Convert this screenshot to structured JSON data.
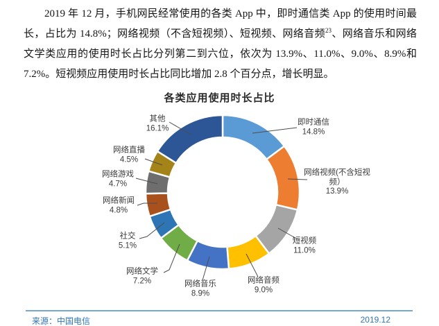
{
  "paragraph": {
    "part1": "2019 年 12 月，手机网民经常使用的各类 App 中，即时通信类 App 的使用时间最长，占比为 14.8%；网络视频（不含短视频）、短视频、网络音频",
    "footnote_ref": "23",
    "part2": "、网络音乐和网络文学类应用的使用时长占比分列第二到六位，依次为 13.9%、11.0%、9.0%、8.9%和 7.2%。短视频应用使用时长占比同比增加 2.8 个百分点，增长明显。"
  },
  "chart_data": {
    "type": "pie",
    "subtype": "donut",
    "title": "各类应用使用时长占比",
    "unit": "%",
    "start_angle_deg": 0,
    "direction": "clockwise",
    "legend": "none",
    "labels_style": "category-and-percent-with-leader-lines",
    "categories": [
      "即时通信",
      "网络视频(不含短视频）",
      "短视频",
      "网络音频",
      "网络音乐",
      "网络文学",
      "社交",
      "网络新闻",
      "网络游戏",
      "网络直播",
      "其他"
    ],
    "values": [
      14.8,
      13.9,
      11.0,
      9.0,
      8.9,
      7.2,
      5.1,
      4.8,
      4.7,
      4.5,
      16.1
    ],
    "colors": [
      "#5B9BD5",
      "#ED7D31",
      "#A5A5A5",
      "#FFC000",
      "#4472C4",
      "#70AD47",
      "#2E75B6",
      "#A9511C",
      "#6E6E6E",
      "#A48318",
      "#2D5696"
    ]
  },
  "footer": {
    "source": "来源：中国电信",
    "date": "2019.12",
    "accent_color": "#2E75B6"
  }
}
